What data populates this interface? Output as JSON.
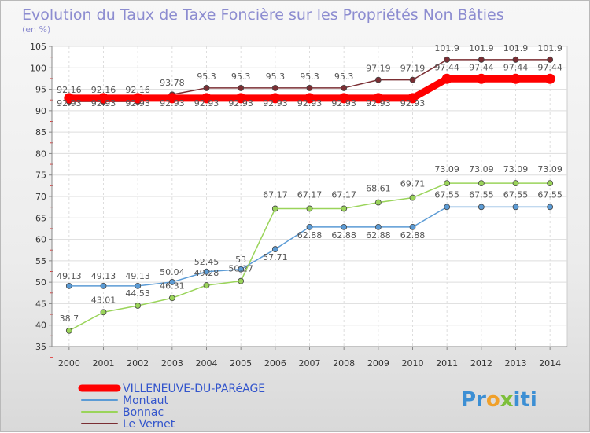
{
  "chart_data": {
    "type": "line",
    "title": "Evolution du Taux de Taxe Foncière sur les Propriétés Non Bâties",
    "subtitle": "(en %)",
    "xlabel": "",
    "ylabel": "(en %)",
    "ylim": [
      35,
      105
    ],
    "yticks": [
      35,
      40,
      45,
      50,
      55,
      60,
      65,
      70,
      75,
      80,
      85,
      90,
      95,
      100,
      105
    ],
    "categories": [
      "2000",
      "2001",
      "2002",
      "2003",
      "2004",
      "2005",
      "2006",
      "2007",
      "2008",
      "2009",
      "2010",
      "2011",
      "2012",
      "2013",
      "2014"
    ],
    "grid": true,
    "legend_position": "bottom-left",
    "series": [
      {
        "name": "Le Vernet",
        "color": "#7a2e33",
        "values": [
          92.16,
          92.16,
          92.16,
          93.78,
          95.3,
          95.3,
          95.3,
          95.3,
          95.3,
          97.19,
          97.19,
          101.9,
          101.9,
          101.9,
          101.9
        ],
        "labels": [
          "92.16",
          "92.16",
          "92.16",
          "93.78",
          "95.3",
          "95.3",
          "95.3",
          "95.3",
          "95.3",
          "97.19",
          "97.19",
          "101.9",
          "101.9",
          "101.9",
          "101.9"
        ]
      },
      {
        "name": "VILLENEUVE-DU-PARéAGE",
        "color": "#ff0000",
        "values": [
          92.93,
          92.93,
          92.93,
          92.93,
          92.93,
          92.93,
          92.93,
          92.93,
          92.93,
          92.93,
          92.93,
          97.44,
          97.44,
          97.44,
          97.44
        ],
        "labels": [
          "92.93",
          "92.93",
          "92.93",
          "92.93",
          "92.93",
          "92.93",
          "92.93",
          "92.93",
          "92.93",
          "92.93",
          "92.93",
          "97.44",
          "97.44",
          "97.44",
          "97.44"
        ]
      },
      {
        "name": "Montaut",
        "color": "#5b9bd5",
        "values": [
          49.13,
          49.13,
          49.13,
          50.04,
          52.45,
          53,
          57.71,
          62.88,
          62.88,
          62.88,
          62.88,
          67.55,
          67.55,
          67.55,
          67.55
        ],
        "labels": [
          "49.13",
          "49.13",
          "49.13",
          "50.04",
          "52.45",
          "53",
          "57.71",
          "62.88",
          "62.88",
          "62.88",
          "62.88",
          "67.55",
          "67.55",
          "67.55",
          "67.55"
        ]
      },
      {
        "name": "Bonnac",
        "color": "#9ad45a",
        "values": [
          38.7,
          43.01,
          44.53,
          46.31,
          49.28,
          50.27,
          67.17,
          67.17,
          67.17,
          68.61,
          69.71,
          73.09,
          73.09,
          73.09,
          73.09
        ],
        "labels": [
          "38.7",
          "43.01",
          "44.53",
          "46.31",
          "49.28",
          "50.27",
          "67.17",
          "67.17",
          "67.17",
          "68.61",
          "69.71",
          "73.09",
          "73.09",
          "73.09",
          "73.09"
        ]
      }
    ],
    "legend": [
      {
        "name": "VILLENEUVE-DU-PARéAGE",
        "color": "#ff0000"
      },
      {
        "name": "Montaut",
        "color": "#5b9bd5"
      },
      {
        "name": "Bonnac",
        "color": "#9ad45a"
      },
      {
        "name": "Le Vernet",
        "color": "#7a2e33"
      }
    ]
  },
  "logo": {
    "letters": [
      "P",
      "r",
      "o",
      "x",
      "i",
      "t",
      "i"
    ],
    "colors": [
      "#3c8fd4",
      "#3c8fd4",
      "#f0a02a",
      "#7dbf3a",
      "#3c8fd4",
      "#3c8fd4",
      "#3c8fd4"
    ]
  }
}
